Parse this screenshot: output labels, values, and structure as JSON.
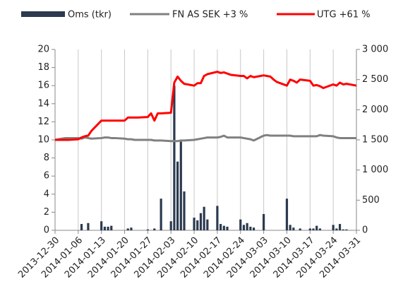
{
  "chart_data": {
    "type": "combo",
    "x": [
      "2013-12-30",
      "2013-12-31",
      "2014-01-01",
      "2014-01-02",
      "2014-01-03",
      "2014-01-06",
      "2014-01-07",
      "2014-01-08",
      "2014-01-09",
      "2014-01-10",
      "2014-01-13",
      "2014-01-14",
      "2014-01-15",
      "2014-01-16",
      "2014-01-17",
      "2014-01-20",
      "2014-01-21",
      "2014-01-22",
      "2014-01-23",
      "2014-01-24",
      "2014-01-27",
      "2014-01-28",
      "2014-01-29",
      "2014-01-30",
      "2014-01-31",
      "2014-02-03",
      "2014-02-04",
      "2014-02-05",
      "2014-02-06",
      "2014-02-07",
      "2014-02-10",
      "2014-02-11",
      "2014-02-12",
      "2014-02-13",
      "2014-02-14",
      "2014-02-17",
      "2014-02-18",
      "2014-02-19",
      "2014-02-20",
      "2014-02-21",
      "2014-02-24",
      "2014-02-25",
      "2014-02-26",
      "2014-02-27",
      "2014-02-28",
      "2014-03-03",
      "2014-03-04",
      "2014-03-05",
      "2014-03-06",
      "2014-03-07",
      "2014-03-10",
      "2014-03-11",
      "2014-03-12",
      "2014-03-13",
      "2014-03-14",
      "2014-03-17",
      "2014-03-18",
      "2014-03-19",
      "2014-03-20",
      "2014-03-21",
      "2014-03-24",
      "2014-03-25",
      "2014-03-26",
      "2014-03-27",
      "2014-03-28",
      "2014-03-31"
    ],
    "series": [
      {
        "name": "Oms (tkr)",
        "type": "bar",
        "color": "#2b3a4f",
        "axis": "y",
        "values": [
          0,
          0,
          0,
          0,
          0,
          0,
          0.7,
          0,
          0.8,
          0,
          1.0,
          0.4,
          0.4,
          0.5,
          0,
          0,
          0.2,
          0.3,
          0,
          0,
          0.1,
          0,
          0.2,
          0,
          3.5,
          1.0,
          16,
          7.6,
          9.8,
          4.3,
          1.4,
          1.1,
          1.9,
          2.6,
          1.2,
          2.7,
          0.7,
          0.5,
          0.4,
          0,
          1.2,
          0.6,
          0.8,
          0.4,
          0.3,
          1.8,
          0,
          0,
          0,
          0,
          3.5,
          0.6,
          0.3,
          0,
          0.2,
          0.2,
          0.2,
          0.5,
          0.2,
          0,
          0.6,
          0.2,
          0.7,
          0.1,
          0.1,
          0
        ]
      },
      {
        "name": "FN AS SEK +3 %",
        "type": "line",
        "color": "#808080",
        "axis": "y2",
        "values": [
          1500,
          1510,
          1520,
          1530,
          1530,
          1530,
          1520,
          1540,
          1530,
          1520,
          1530,
          1540,
          1540,
          1530,
          1530,
          1520,
          1510,
          1510,
          1500,
          1500,
          1500,
          1500,
          1490,
          1490,
          1490,
          1480,
          1480,
          1480,
          1490,
          1490,
          1500,
          1510,
          1520,
          1530,
          1540,
          1540,
          1550,
          1570,
          1540,
          1540,
          1540,
          1530,
          1520,
          1510,
          1490,
          1570,
          1580,
          1570,
          1570,
          1570,
          1570,
          1570,
          1560,
          1560,
          1560,
          1560,
          1560,
          1560,
          1580,
          1570,
          1560,
          1540,
          1530,
          1530,
          1530,
          1530
        ]
      },
      {
        "name": "UTG +61 %",
        "type": "line",
        "color": "#ff0000",
        "axis": "y2",
        "values": [
          1500,
          1500,
          1500,
          1500,
          1500,
          1510,
          1540,
          1560,
          1570,
          1650,
          1820,
          1820,
          1820,
          1820,
          1820,
          1820,
          1870,
          1870,
          1870,
          1870,
          1880,
          1940,
          1820,
          1940,
          1940,
          1950,
          2450,
          2550,
          2480,
          2430,
          2400,
          2440,
          2440,
          2560,
          2590,
          2630,
          2610,
          2620,
          2600,
          2580,
          2560,
          2560,
          2520,
          2560,
          2540,
          2570,
          2560,
          2550,
          2500,
          2460,
          2400,
          2500,
          2480,
          2450,
          2500,
          2480,
          2400,
          2410,
          2390,
          2360,
          2420,
          2400,
          2450,
          2420,
          2430,
          2400
        ]
      }
    ],
    "xlim": [
      "2013-12-30",
      "2014-03-31"
    ],
    "xticks": [
      "2013-12-30",
      "2014-01-06",
      "2014-01-13",
      "2014-01-20",
      "2014-01-27",
      "2014-02-03",
      "2014-02-10",
      "2014-02-17",
      "2014-02-24",
      "2014-03-03",
      "2014-03-10",
      "2014-03-17",
      "2014-03-24",
      "2014-03-31"
    ],
    "ylim": [
      0,
      20
    ],
    "yticks": [
      0,
      2,
      4,
      6,
      8,
      10,
      12,
      14,
      16,
      18,
      20
    ],
    "y2lim": [
      0,
      3000
    ],
    "y2ticks": [
      0,
      500,
      {
        "value": 1000,
        "label": "1 000"
      },
      {
        "value": 1500,
        "label": "1 500"
      },
      {
        "value": 2000,
        "label": "2 000"
      },
      {
        "value": 2500,
        "label": "2 500"
      },
      {
        "value": 3000,
        "label": "3 000"
      }
    ],
    "grid": "x"
  }
}
